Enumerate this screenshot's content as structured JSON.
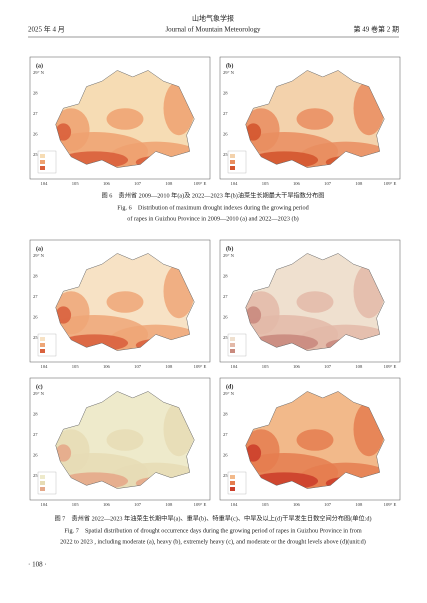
{
  "header": {
    "journal_cn": "山地气象学报",
    "date": "2025 年 4 月",
    "journal_en": "Journal of Mountain Meteorology",
    "volume": "第 49 卷第 2 期"
  },
  "figures": [
    {
      "panels": [
        "(a)",
        "(b)"
      ],
      "lat_ticks": [
        "29° N",
        "28",
        "27",
        "26",
        "25"
      ],
      "lon_ticks": [
        "104",
        "105",
        "106",
        "107",
        "108",
        "109° E"
      ],
      "caption_cn": "图 6　贵州省 2009—2010 年(a)及 2022—2023 年(b)油菜生长期最大干旱指数分布图",
      "caption_en": [
        "Fig. 6　Distribution of maximum drought indexes during the growing period",
        "of rapes in Guizhou Province in 2009—2010 (a) and 2022—2023 (b)"
      ]
    },
    {
      "panels": [
        "(a)",
        "(b)",
        "(c)",
        "(d)"
      ],
      "lat_ticks": [
        "29° N",
        "28",
        "27",
        "26",
        "25"
      ],
      "lon_ticks": [
        "104",
        "105",
        "106",
        "107",
        "108",
        "109° E"
      ],
      "caption_cn": "图 7　贵州省 2022—2023 年油菜生长期中旱(a)、重旱(b)、特重旱(c)、中旱及以上(d)干旱发生日数空间分布图(单位:d)",
      "caption_en": [
        "Fig. 7　Spatial distribution of drought occurrence days during the growing period of rapes in Guizhou Province in from",
        "2022 to 2023 , including moderate (a), heavy (b), extremely heavy (c), and moderate or the drought levels above (d)(unit:d)"
      ]
    }
  ],
  "page_number": "· 108 ·"
}
